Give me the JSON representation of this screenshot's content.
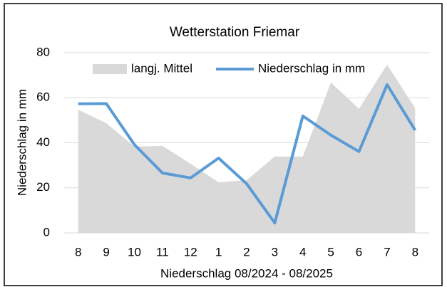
{
  "chart_data": {
    "type": "line",
    "title": "Wetterstation Friemar",
    "x_label": "Niederschlag 08/2024 - 08/2025",
    "y_label": "Niederschlag in mm",
    "categories": [
      "8",
      "9",
      "10",
      "11",
      "12",
      "1",
      "2",
      "3",
      "4",
      "5",
      "6",
      "7",
      "8"
    ],
    "series": [
      {
        "name": "langj. Mittel",
        "kind": "area",
        "color": "#d9d9d9",
        "values": [
          54.7,
          48.7,
          38.3,
          38.6,
          30.7,
          22.5,
          23.4,
          33.9,
          33.9,
          66.8,
          55.1,
          74.7,
          55.4
        ]
      },
      {
        "name": "Niederschlag in mm",
        "kind": "line",
        "color": "#5b9bd5",
        "values": [
          57.3,
          57.4,
          39.2,
          26.6,
          24.4,
          33.2,
          21.8,
          4.4,
          51.9,
          43.4,
          36.1,
          65.8,
          45.6
        ]
      }
    ],
    "ylim": [
      0,
      80
    ],
    "yticks": [
      0,
      20,
      40,
      60,
      80
    ],
    "grid": true,
    "legend": "top"
  }
}
